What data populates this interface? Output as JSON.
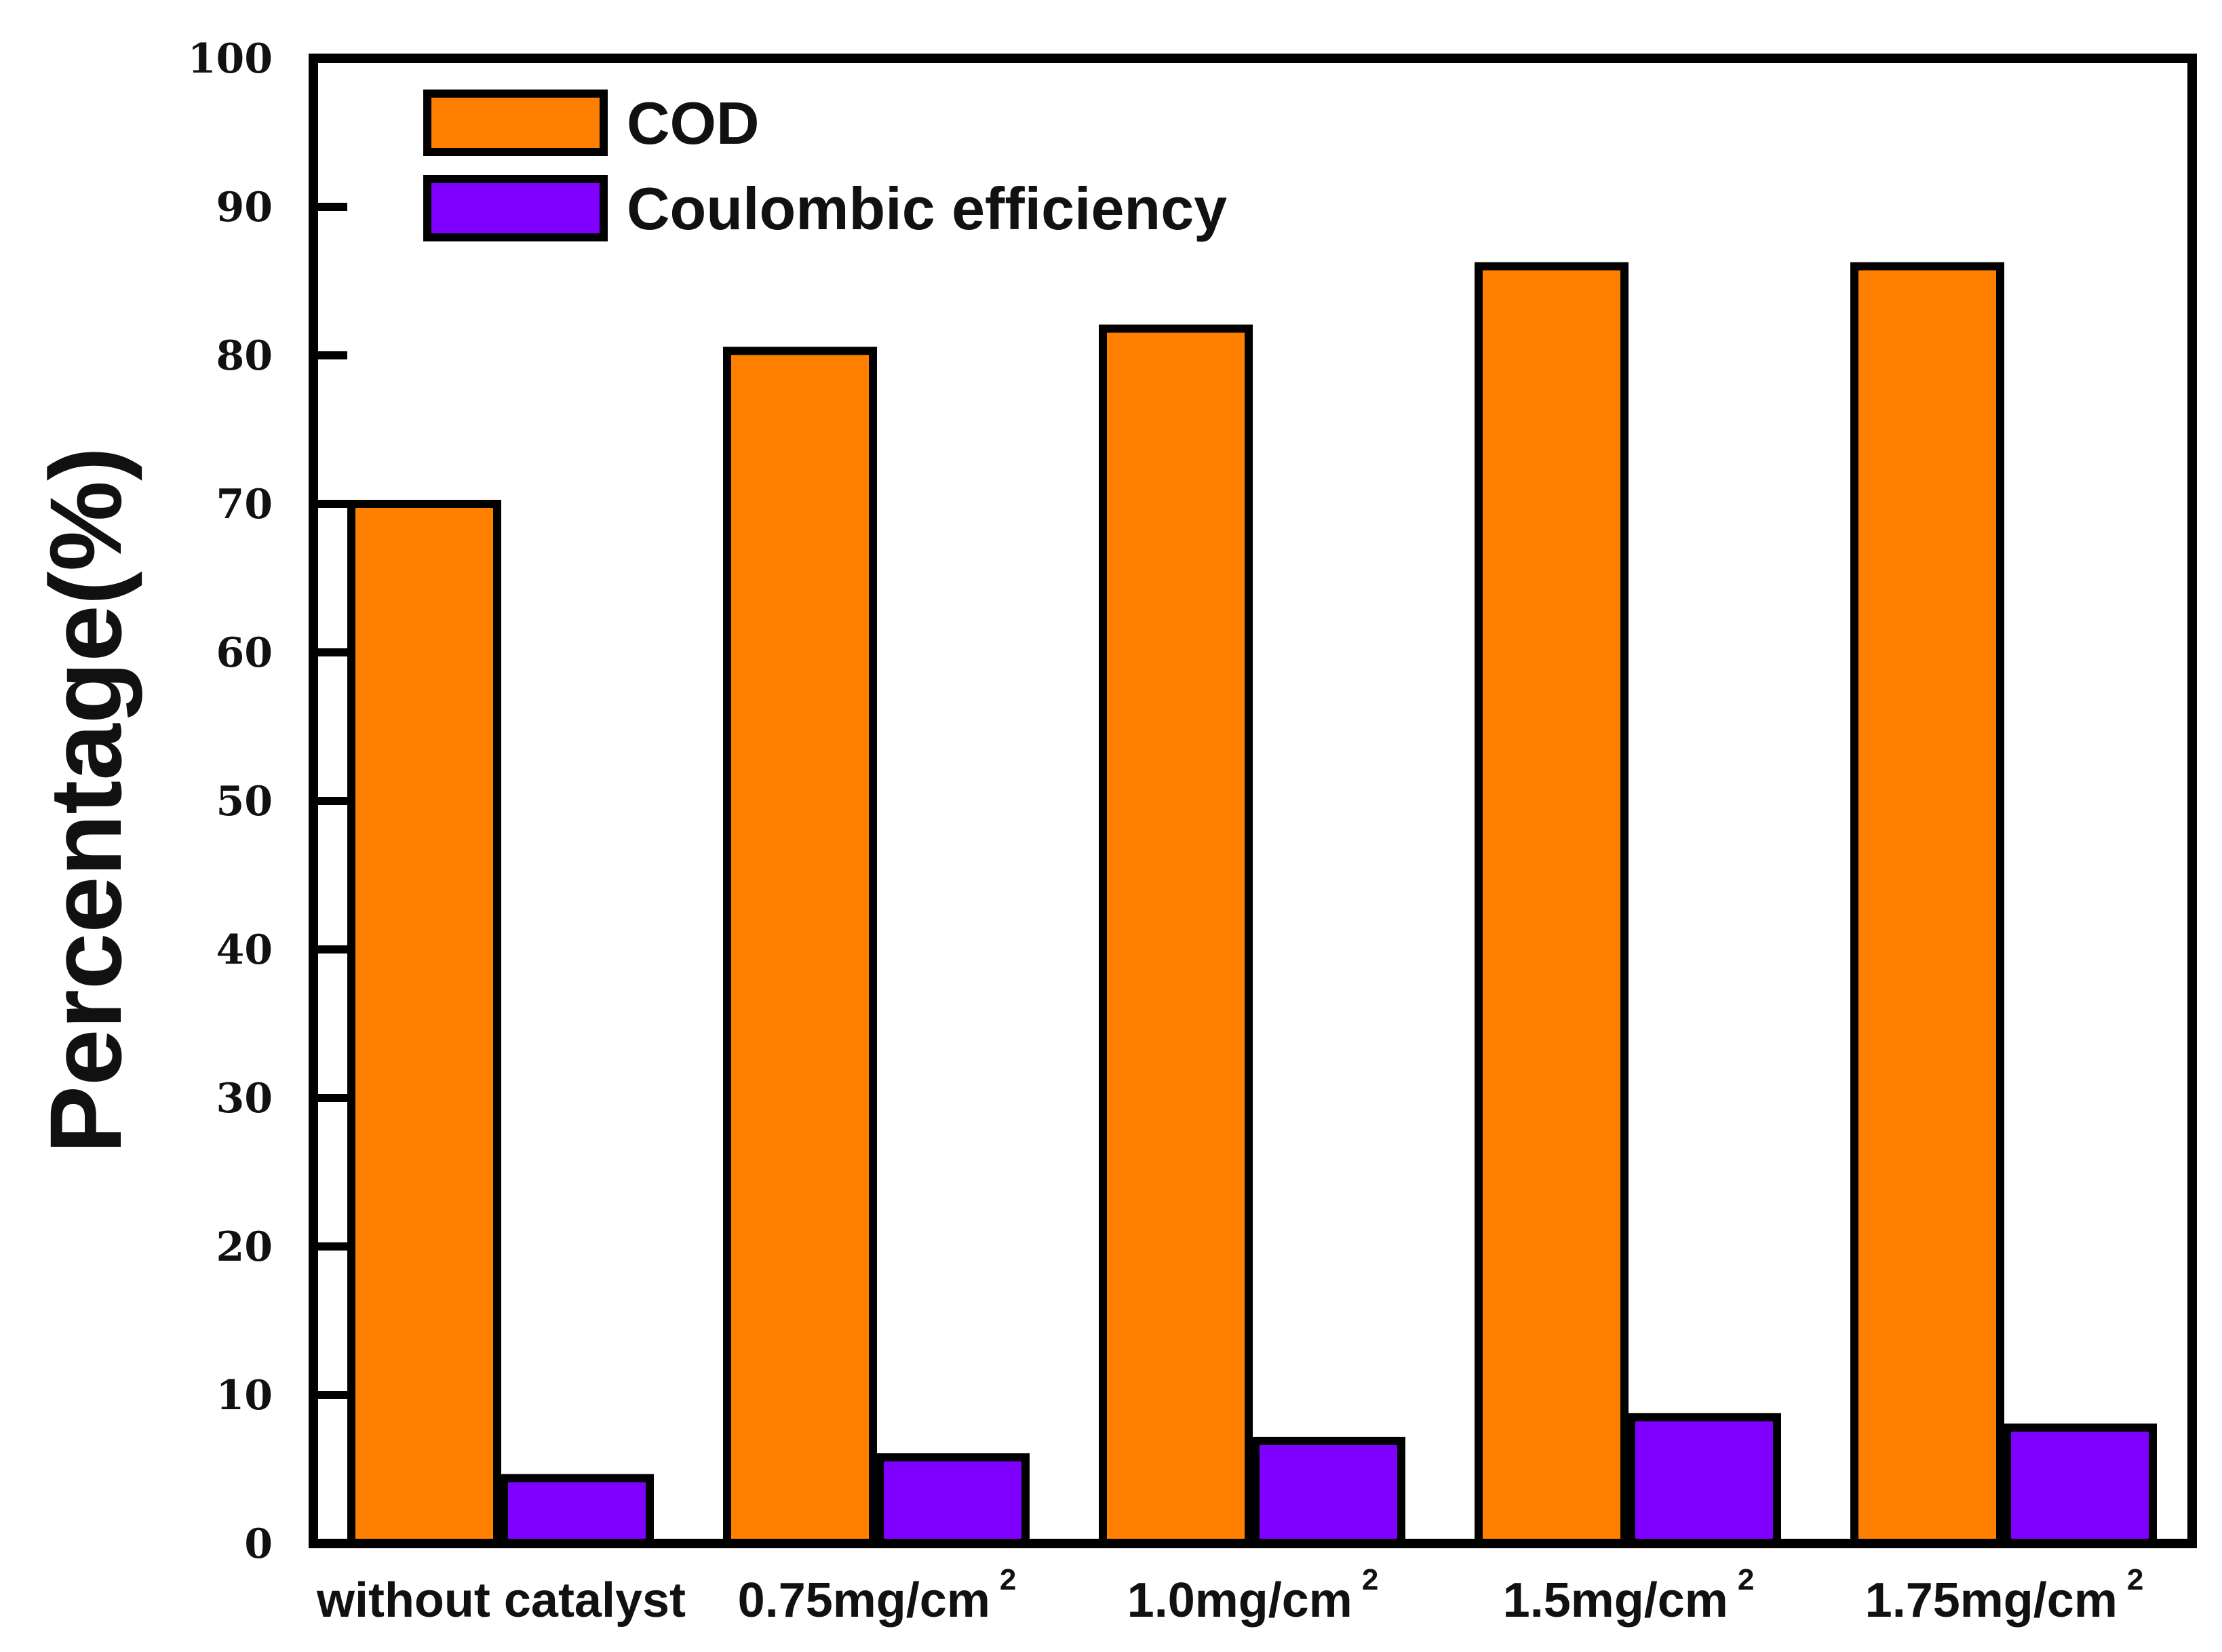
{
  "chart_data": {
    "type": "bar",
    "title": "",
    "xlabel": "",
    "ylabel": "Percentage(%)",
    "ylim": [
      0,
      100
    ],
    "yticks": [
      "0",
      "10",
      "20",
      "30",
      "40",
      "50",
      "60",
      "70",
      "80",
      "90",
      "100"
    ],
    "categories": [
      {
        "base": "without catalyst",
        "sup": ""
      },
      {
        "base": "0.75mg/cm",
        "sup": "2"
      },
      {
        "base": "1.0mg/cm",
        "sup": "2"
      },
      {
        "base": "1.5mg/cm",
        "sup": "2"
      },
      {
        "base": "1.75mg/cm",
        "sup": "2"
      }
    ],
    "series": [
      {
        "name": "COD",
        "color": "#FF8000",
        "values": [
          70,
          80.3,
          81.8,
          86,
          86
        ]
      },
      {
        "name": "Coulombic efficiency",
        "color": "#8000FF",
        "values": [
          4.4,
          5.8,
          6.9,
          8.5,
          7.8
        ]
      }
    ],
    "legend": "top-left",
    "grid": false
  }
}
